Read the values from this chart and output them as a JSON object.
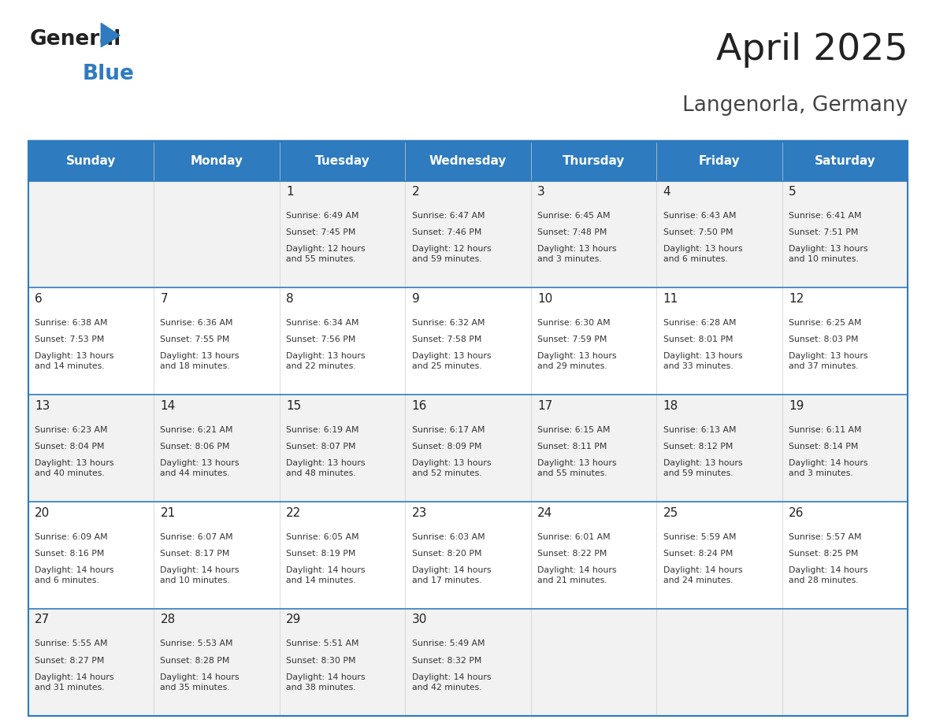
{
  "title": "April 2025",
  "subtitle": "Langenorla, Germany",
  "header_bg": "#2E7BBF",
  "header_text": "#FFFFFF",
  "odd_row_bg": "#F2F2F2",
  "even_row_bg": "#FFFFFF",
  "border_color": "#2E7BBF",
  "row_border_color": "#2E7BBF",
  "day_headers": [
    "Sunday",
    "Monday",
    "Tuesday",
    "Wednesday",
    "Thursday",
    "Friday",
    "Saturday"
  ],
  "title_color": "#222222",
  "subtitle_color": "#444444",
  "cell_text_color": "#333333",
  "day_num_color": "#222222",
  "logo_text_color": "#222222",
  "logo_blue_color": "#2E7BBF",
  "weeks": [
    [
      {
        "day": "",
        "sunrise": "",
        "sunset": "",
        "daylight": ""
      },
      {
        "day": "",
        "sunrise": "",
        "sunset": "",
        "daylight": ""
      },
      {
        "day": "1",
        "sunrise": "Sunrise: 6:49 AM",
        "sunset": "Sunset: 7:45 PM",
        "daylight": "Daylight: 12 hours\nand 55 minutes."
      },
      {
        "day": "2",
        "sunrise": "Sunrise: 6:47 AM",
        "sunset": "Sunset: 7:46 PM",
        "daylight": "Daylight: 12 hours\nand 59 minutes."
      },
      {
        "day": "3",
        "sunrise": "Sunrise: 6:45 AM",
        "sunset": "Sunset: 7:48 PM",
        "daylight": "Daylight: 13 hours\nand 3 minutes."
      },
      {
        "day": "4",
        "sunrise": "Sunrise: 6:43 AM",
        "sunset": "Sunset: 7:50 PM",
        "daylight": "Daylight: 13 hours\nand 6 minutes."
      },
      {
        "day": "5",
        "sunrise": "Sunrise: 6:41 AM",
        "sunset": "Sunset: 7:51 PM",
        "daylight": "Daylight: 13 hours\nand 10 minutes."
      }
    ],
    [
      {
        "day": "6",
        "sunrise": "Sunrise: 6:38 AM",
        "sunset": "Sunset: 7:53 PM",
        "daylight": "Daylight: 13 hours\nand 14 minutes."
      },
      {
        "day": "7",
        "sunrise": "Sunrise: 6:36 AM",
        "sunset": "Sunset: 7:55 PM",
        "daylight": "Daylight: 13 hours\nand 18 minutes."
      },
      {
        "day": "8",
        "sunrise": "Sunrise: 6:34 AM",
        "sunset": "Sunset: 7:56 PM",
        "daylight": "Daylight: 13 hours\nand 22 minutes."
      },
      {
        "day": "9",
        "sunrise": "Sunrise: 6:32 AM",
        "sunset": "Sunset: 7:58 PM",
        "daylight": "Daylight: 13 hours\nand 25 minutes."
      },
      {
        "day": "10",
        "sunrise": "Sunrise: 6:30 AM",
        "sunset": "Sunset: 7:59 PM",
        "daylight": "Daylight: 13 hours\nand 29 minutes."
      },
      {
        "day": "11",
        "sunrise": "Sunrise: 6:28 AM",
        "sunset": "Sunset: 8:01 PM",
        "daylight": "Daylight: 13 hours\nand 33 minutes."
      },
      {
        "day": "12",
        "sunrise": "Sunrise: 6:25 AM",
        "sunset": "Sunset: 8:03 PM",
        "daylight": "Daylight: 13 hours\nand 37 minutes."
      }
    ],
    [
      {
        "day": "13",
        "sunrise": "Sunrise: 6:23 AM",
        "sunset": "Sunset: 8:04 PM",
        "daylight": "Daylight: 13 hours\nand 40 minutes."
      },
      {
        "day": "14",
        "sunrise": "Sunrise: 6:21 AM",
        "sunset": "Sunset: 8:06 PM",
        "daylight": "Daylight: 13 hours\nand 44 minutes."
      },
      {
        "day": "15",
        "sunrise": "Sunrise: 6:19 AM",
        "sunset": "Sunset: 8:07 PM",
        "daylight": "Daylight: 13 hours\nand 48 minutes."
      },
      {
        "day": "16",
        "sunrise": "Sunrise: 6:17 AM",
        "sunset": "Sunset: 8:09 PM",
        "daylight": "Daylight: 13 hours\nand 52 minutes."
      },
      {
        "day": "17",
        "sunrise": "Sunrise: 6:15 AM",
        "sunset": "Sunset: 8:11 PM",
        "daylight": "Daylight: 13 hours\nand 55 minutes."
      },
      {
        "day": "18",
        "sunrise": "Sunrise: 6:13 AM",
        "sunset": "Sunset: 8:12 PM",
        "daylight": "Daylight: 13 hours\nand 59 minutes."
      },
      {
        "day": "19",
        "sunrise": "Sunrise: 6:11 AM",
        "sunset": "Sunset: 8:14 PM",
        "daylight": "Daylight: 14 hours\nand 3 minutes."
      }
    ],
    [
      {
        "day": "20",
        "sunrise": "Sunrise: 6:09 AM",
        "sunset": "Sunset: 8:16 PM",
        "daylight": "Daylight: 14 hours\nand 6 minutes."
      },
      {
        "day": "21",
        "sunrise": "Sunrise: 6:07 AM",
        "sunset": "Sunset: 8:17 PM",
        "daylight": "Daylight: 14 hours\nand 10 minutes."
      },
      {
        "day": "22",
        "sunrise": "Sunrise: 6:05 AM",
        "sunset": "Sunset: 8:19 PM",
        "daylight": "Daylight: 14 hours\nand 14 minutes."
      },
      {
        "day": "23",
        "sunrise": "Sunrise: 6:03 AM",
        "sunset": "Sunset: 8:20 PM",
        "daylight": "Daylight: 14 hours\nand 17 minutes."
      },
      {
        "day": "24",
        "sunrise": "Sunrise: 6:01 AM",
        "sunset": "Sunset: 8:22 PM",
        "daylight": "Daylight: 14 hours\nand 21 minutes."
      },
      {
        "day": "25",
        "sunrise": "Sunrise: 5:59 AM",
        "sunset": "Sunset: 8:24 PM",
        "daylight": "Daylight: 14 hours\nand 24 minutes."
      },
      {
        "day": "26",
        "sunrise": "Sunrise: 5:57 AM",
        "sunset": "Sunset: 8:25 PM",
        "daylight": "Daylight: 14 hours\nand 28 minutes."
      }
    ],
    [
      {
        "day": "27",
        "sunrise": "Sunrise: 5:55 AM",
        "sunset": "Sunset: 8:27 PM",
        "daylight": "Daylight: 14 hours\nand 31 minutes."
      },
      {
        "day": "28",
        "sunrise": "Sunrise: 5:53 AM",
        "sunset": "Sunset: 8:28 PM",
        "daylight": "Daylight: 14 hours\nand 35 minutes."
      },
      {
        "day": "29",
        "sunrise": "Sunrise: 5:51 AM",
        "sunset": "Sunset: 8:30 PM",
        "daylight": "Daylight: 14 hours\nand 38 minutes."
      },
      {
        "day": "30",
        "sunrise": "Sunrise: 5:49 AM",
        "sunset": "Sunset: 8:32 PM",
        "daylight": "Daylight: 14 hours\nand 42 minutes."
      },
      {
        "day": "",
        "sunrise": "",
        "sunset": "",
        "daylight": ""
      },
      {
        "day": "",
        "sunrise": "",
        "sunset": "",
        "daylight": ""
      },
      {
        "day": "",
        "sunrise": "",
        "sunset": "",
        "daylight": ""
      }
    ]
  ]
}
